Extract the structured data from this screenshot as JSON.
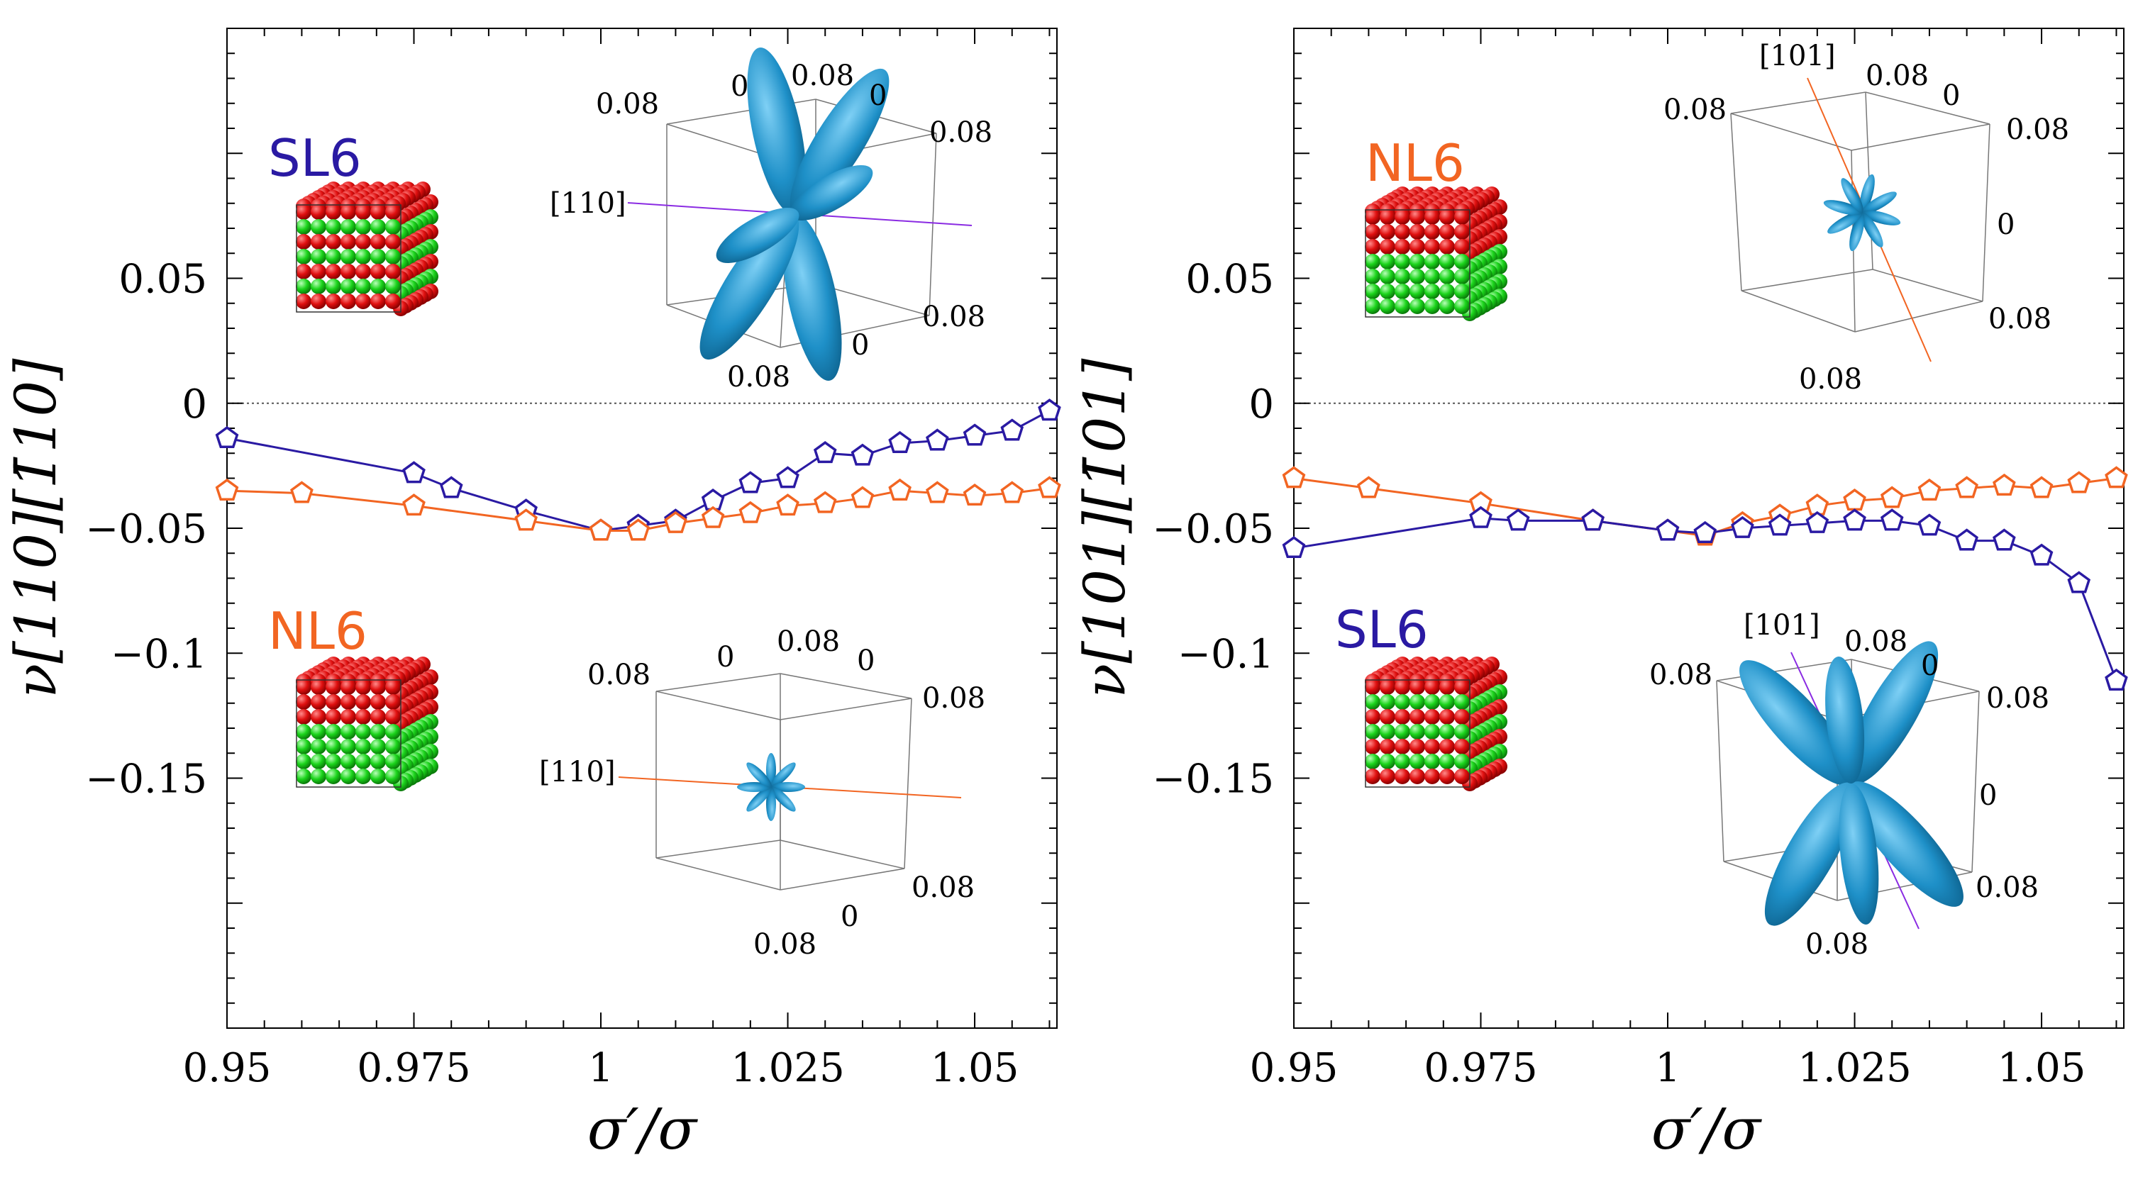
{
  "colors": {
    "SL6": "#2a1aa3",
    "NL6": "#f26522",
    "lobe": "#1e90c8",
    "red": "#e01010",
    "green": "#1bd41b"
  },
  "chart_data": [
    {
      "type": "line",
      "xlabel": "σ′/σ",
      "ylabel": "ν[110][1̄10]",
      "xlim": [
        0.95,
        1.061
      ],
      "ylim": [
        -0.25,
        0.15
      ],
      "xticks": [
        0.95,
        0.975,
        1,
        1.025,
        1.05
      ],
      "xtick_labels": [
        "0.95",
        "0.975",
        "1",
        "1.025",
        "1.05"
      ],
      "yticks": [
        0.05,
        0,
        -0.05,
        -0.1,
        -0.15
      ],
      "ytick_labels": [
        "0.05",
        "0",
        "−0.05",
        "−0.1",
        "−0.15"
      ],
      "series": [
        {
          "name": "SL6",
          "x": [
            0.95,
            0.975,
            0.98,
            0.99,
            1.0,
            1.005,
            1.01,
            1.015,
            1.02,
            1.025,
            1.03,
            1.035,
            1.04,
            1.045,
            1.05,
            1.055,
            1.06
          ],
          "values": [
            -0.014,
            -0.028,
            -0.034,
            -0.043,
            -0.051,
            -0.049,
            -0.047,
            -0.039,
            -0.032,
            -0.03,
            -0.02,
            -0.021,
            -0.016,
            -0.015,
            -0.013,
            -0.011,
            -0.003
          ]
        },
        {
          "name": "NL6",
          "x": [
            0.95,
            0.96,
            0.975,
            0.99,
            1.0,
            1.005,
            1.01,
            1.015,
            1.02,
            1.025,
            1.03,
            1.035,
            1.04,
            1.045,
            1.05,
            1.055,
            1.06
          ],
          "values": [
            -0.035,
            -0.036,
            -0.041,
            -0.047,
            -0.051,
            -0.051,
            -0.048,
            -0.046,
            -0.044,
            -0.041,
            -0.04,
            -0.038,
            -0.035,
            -0.036,
            -0.037,
            -0.036,
            -0.034
          ]
        }
      ],
      "annotations": {
        "top_label": "SL6",
        "bottom_label": "NL6",
        "top_inset": {
          "direction": "[110]",
          "labels": [
            "0.08",
            "0",
            "0.08",
            "0",
            "0.08",
            "0.08",
            "0",
            "0.08"
          ]
        },
        "bottom_inset": {
          "direction": "[110]",
          "labels": [
            "0",
            "0.08",
            "0",
            "0.08",
            "0.08",
            "0.08",
            "0",
            "0.08"
          ]
        }
      }
    },
    {
      "type": "line",
      "xlabel": "σ′/σ",
      "ylabel": "ν[101][1̄01]",
      "xlim": [
        0.95,
        1.061
      ],
      "ylim": [
        -0.25,
        0.15
      ],
      "xticks": [
        0.95,
        0.975,
        1,
        1.025,
        1.05
      ],
      "xtick_labels": [
        "0.95",
        "0.975",
        "1",
        "1.025",
        "1.05"
      ],
      "yticks": [
        0.05,
        0,
        -0.05,
        -0.1,
        -0.15
      ],
      "ytick_labels": [
        "0.05",
        "0",
        "−0.05",
        "−0.1",
        "−0.15"
      ],
      "series": [
        {
          "name": "NL6",
          "x": [
            0.95,
            0.96,
            0.975,
            0.99,
            1.0,
            1.005,
            1.01,
            1.015,
            1.02,
            1.025,
            1.03,
            1.035,
            1.04,
            1.045,
            1.05,
            1.055,
            1.06
          ],
          "values": [
            -0.03,
            -0.034,
            -0.04,
            -0.047,
            -0.051,
            -0.053,
            -0.048,
            -0.045,
            -0.041,
            -0.039,
            -0.038,
            -0.035,
            -0.034,
            -0.033,
            -0.034,
            -0.032,
            -0.03
          ]
        },
        {
          "name": "SL6",
          "x": [
            0.95,
            0.975,
            0.98,
            0.99,
            1.0,
            1.005,
            1.01,
            1.015,
            1.02,
            1.025,
            1.03,
            1.035,
            1.04,
            1.045,
            1.05,
            1.055,
            1.06
          ],
          "values": [
            -0.058,
            -0.046,
            -0.047,
            -0.047,
            -0.051,
            -0.052,
            -0.05,
            -0.049,
            -0.048,
            -0.047,
            -0.047,
            -0.049,
            -0.055,
            -0.055,
            -0.061,
            -0.072,
            -0.111
          ]
        }
      ],
      "annotations": {
        "top_label": "NL6",
        "bottom_label": "SL6",
        "top_inset": {
          "direction": "[101]",
          "labels": [
            "0.08",
            "0.08",
            "0",
            "0.08",
            "0",
            "0.08",
            "0.08"
          ]
        },
        "bottom_inset": {
          "direction": "[101]",
          "labels": [
            "0.08",
            "0",
            "0.08",
            "0.08",
            "0",
            "0.08",
            "0.08"
          ]
        }
      }
    }
  ]
}
